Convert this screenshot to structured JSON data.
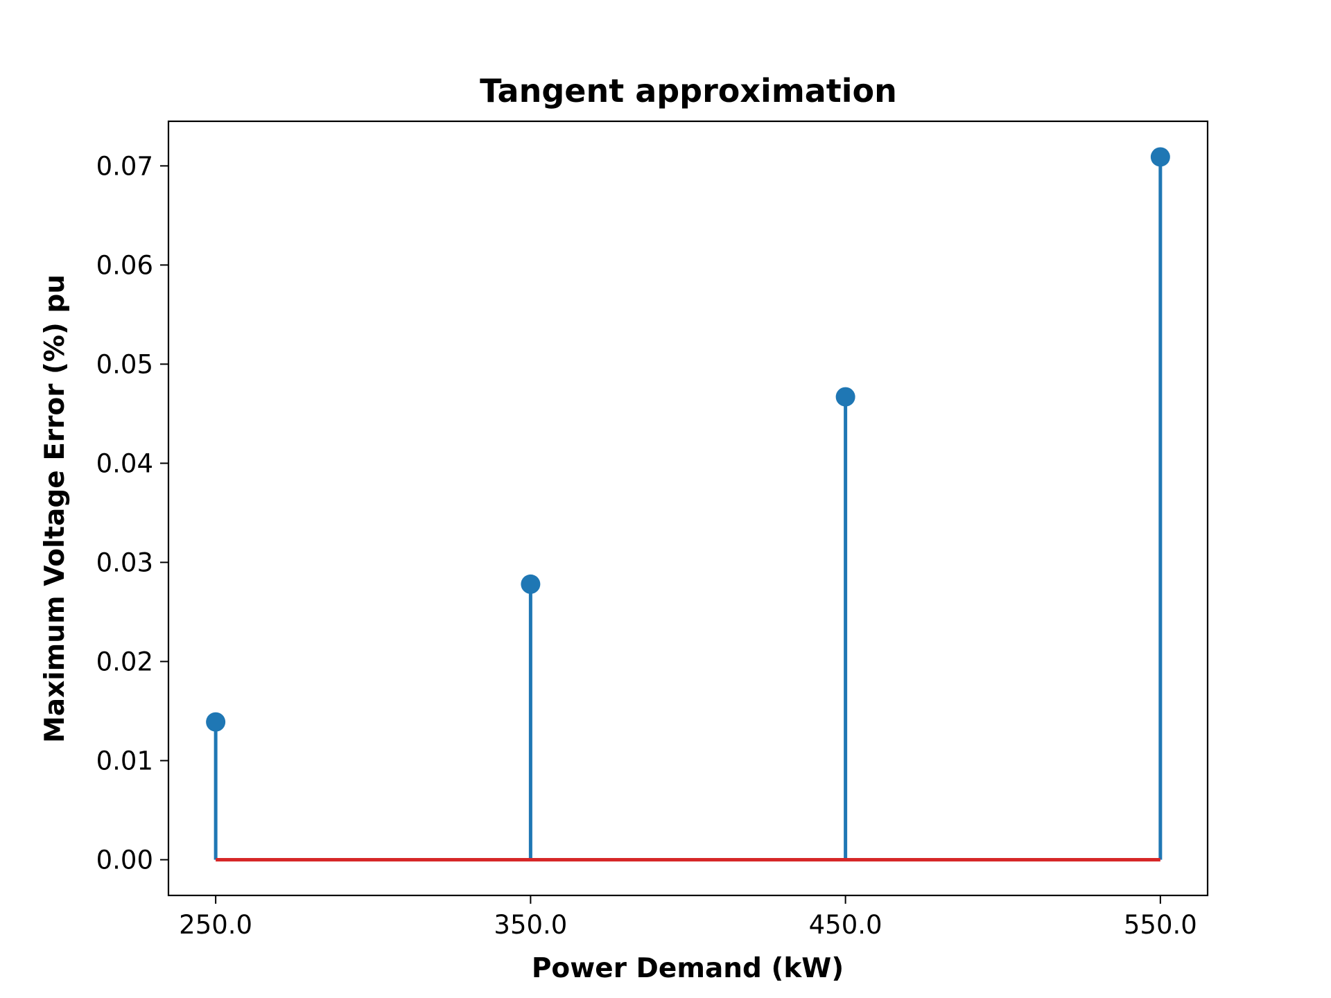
{
  "chart_data": {
    "type": "stem",
    "title": "Tangent approximation",
    "xlabel": "Power Demand (kW)",
    "ylabel": "Maximum Voltage Error (%) pu",
    "x": [
      250.0,
      350.0,
      450.0,
      550.0
    ],
    "values": [
      0.0139,
      0.0278,
      0.0467,
      0.0709
    ],
    "x_ticks": [
      "250.0",
      "350.0",
      "450.0",
      "550.0"
    ],
    "x_tick_values": [
      250,
      350,
      450,
      550
    ],
    "y_ticks": [
      "0.00",
      "0.01",
      "0.02",
      "0.03",
      "0.04",
      "0.05",
      "0.06",
      "0.07"
    ],
    "y_tick_values": [
      0.0,
      0.01,
      0.02,
      0.03,
      0.04,
      0.05,
      0.06,
      0.07
    ],
    "xlim": [
      235,
      565
    ],
    "ylim": [
      -0.0036,
      0.0745
    ],
    "baseline": 0.0,
    "grid": false,
    "colors": {
      "stem": "#1f77b4",
      "marker": "#1f77b4",
      "baseline": "#d62728",
      "axes": "#000000"
    }
  }
}
